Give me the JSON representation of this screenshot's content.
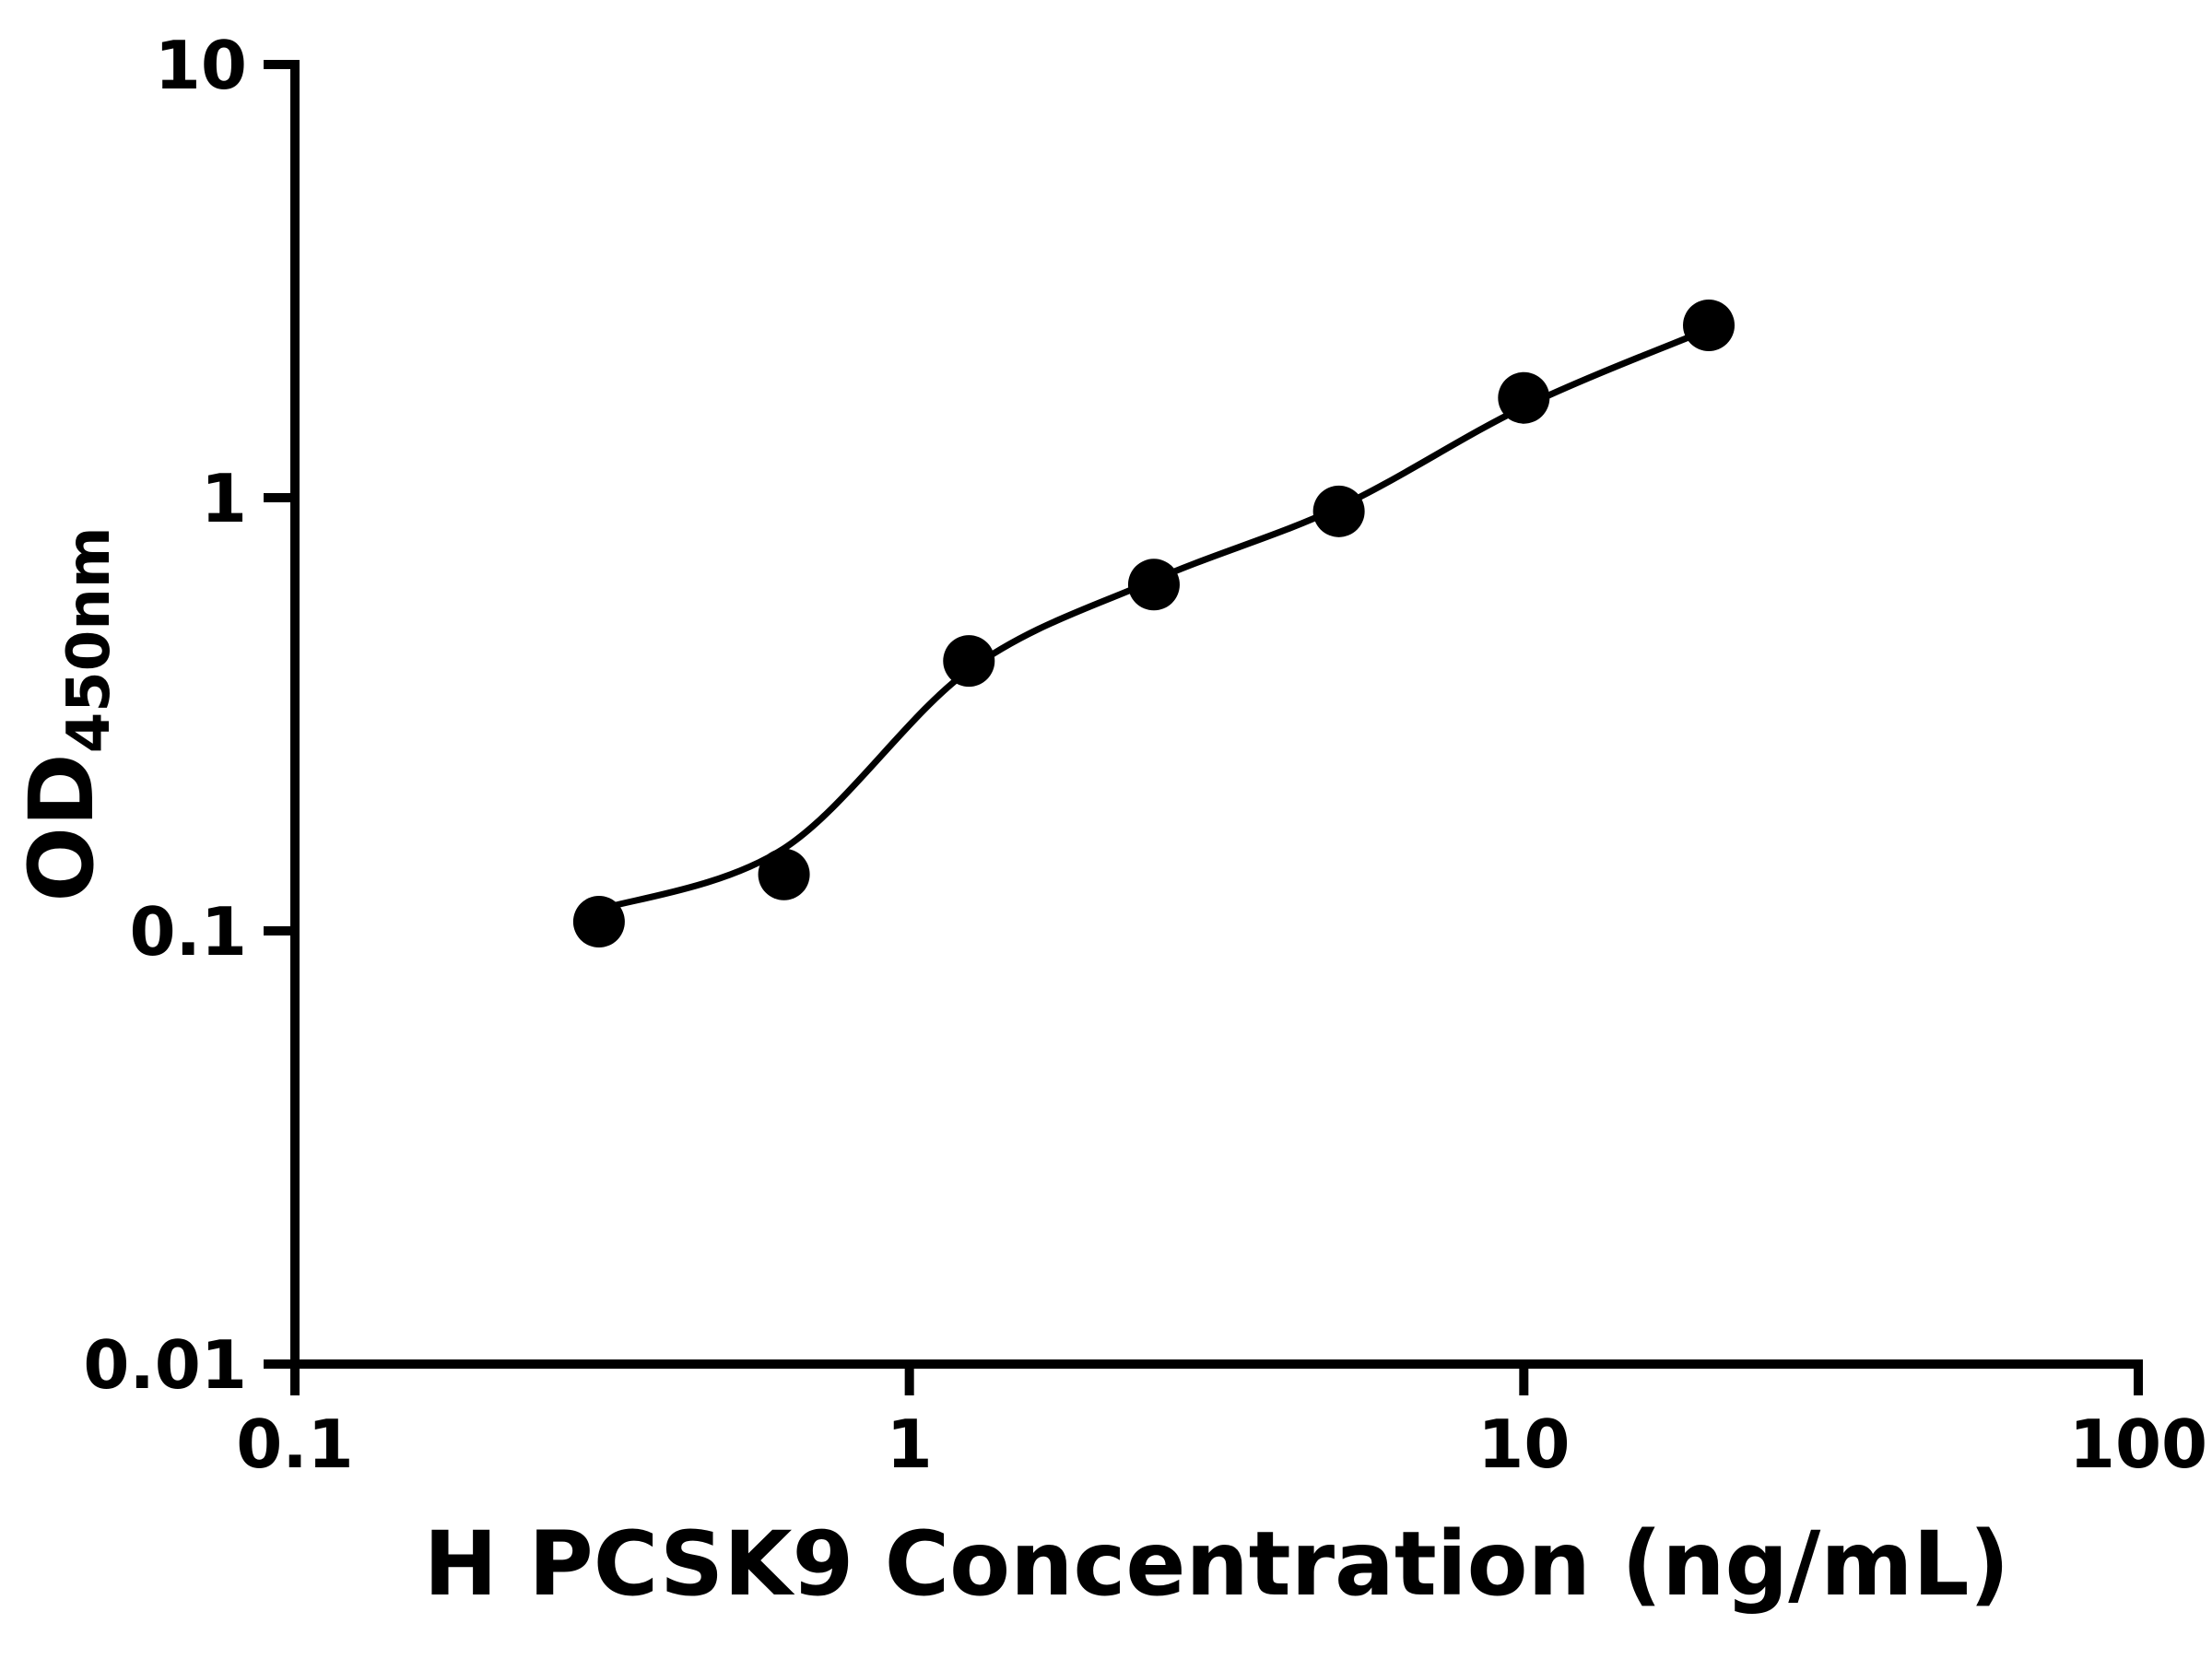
{
  "page": {
    "background": "#ffffff"
  },
  "chart_data": {
    "type": "scatter",
    "title": "",
    "xlabel": "H PCSK9 Concentration (ng/mL)",
    "ylabel_main": "OD",
    "ylabel_sub": "450nm",
    "x_scale": "log",
    "y_scale": "log",
    "xlim": [
      0.1,
      100
    ],
    "ylim": [
      0.01,
      10
    ],
    "x_ticks": [
      0.1,
      1,
      10,
      100
    ],
    "x_tick_labels": [
      "0.1",
      "1",
      "10",
      "100"
    ],
    "y_ticks": [
      0.01,
      0.1,
      1,
      10
    ],
    "y_tick_labels": [
      "0.01",
      "0.1",
      "1",
      "10"
    ],
    "grid": false,
    "legend": false,
    "colors": {
      "axis": "#000000",
      "marker": "#000000",
      "line": "#000000",
      "background": "#ffffff"
    },
    "series": [
      {
        "name": "standard-points",
        "kind": "scatter",
        "marker": "filled-circle",
        "color": "#000000",
        "points": [
          {
            "x": 0.3125,
            "y": 0.105
          },
          {
            "x": 0.625,
            "y": 0.135
          },
          {
            "x": 1.25,
            "y": 0.42
          },
          {
            "x": 2.5,
            "y": 0.63
          },
          {
            "x": 5,
            "y": 0.93
          },
          {
            "x": 10,
            "y": 1.7
          },
          {
            "x": 20,
            "y": 2.5
          }
        ]
      },
      {
        "name": "fit-curve",
        "kind": "line",
        "color": "#000000",
        "points": [
          {
            "x": 0.3125,
            "y": 0.112
          },
          {
            "x": 0.625,
            "y": 0.155
          },
          {
            "x": 1.25,
            "y": 0.4
          },
          {
            "x": 2.5,
            "y": 0.645
          },
          {
            "x": 5,
            "y": 0.95
          },
          {
            "x": 10,
            "y": 1.62
          },
          {
            "x": 20,
            "y": 2.45
          }
        ]
      }
    ]
  }
}
